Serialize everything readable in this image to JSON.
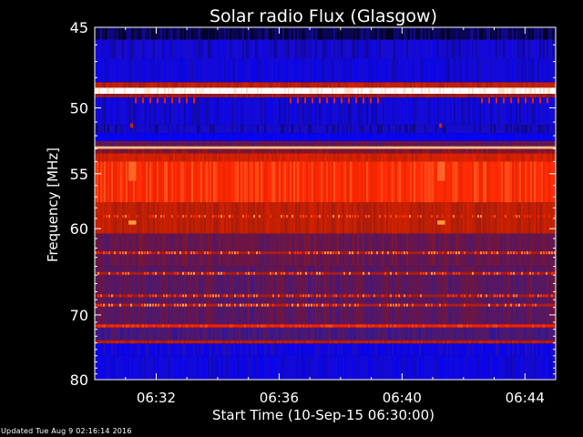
{
  "chart_data": {
    "type": "heatmap",
    "title": "Solar radio Flux (Glasgow)",
    "xlabel": "Start Time (10-Sep-15 06:30:00)",
    "ylabel": "Frequency [MHz]",
    "x_ticks": [
      "06:32",
      "06:36",
      "06:40",
      "06:44"
    ],
    "x_tick_minutes": [
      2,
      6,
      10,
      14
    ],
    "xlim_minutes": [
      0,
      15
    ],
    "y_ticks": [
      45,
      50,
      55,
      60,
      70,
      80
    ],
    "ylim_mhz": [
      45,
      80
    ],
    "y_scale": "reciprocal",
    "grid": false,
    "colormap": [
      "#000000",
      "#1a0dcc",
      "#0000ff",
      "#3c1a86",
      "#7a1430",
      "#c02000",
      "#ff2200",
      "#ff9a40",
      "#ffffff"
    ],
    "bands": [
      {
        "from_mhz": 45.0,
        "to_mhz": 45.7,
        "intensity": 0.05
      },
      {
        "from_mhz": 45.7,
        "to_mhz": 46.8,
        "intensity": 0.14
      },
      {
        "from_mhz": 46.8,
        "to_mhz": 48.3,
        "intensity": 0.16
      },
      {
        "from_mhz": 48.3,
        "to_mhz": 48.65,
        "intensity": 0.62
      },
      {
        "from_mhz": 48.65,
        "to_mhz": 49.05,
        "intensity": 1.0
      },
      {
        "from_mhz": 49.05,
        "to_mhz": 49.3,
        "intensity": 0.55
      },
      {
        "from_mhz": 49.3,
        "to_mhz": 51.2,
        "intensity": 0.15
      },
      {
        "from_mhz": 51.2,
        "to_mhz": 51.8,
        "intensity": 0.12
      },
      {
        "from_mhz": 51.8,
        "to_mhz": 52.4,
        "intensity": 0.22
      },
      {
        "from_mhz": 52.4,
        "to_mhz": 52.8,
        "intensity": 0.45
      },
      {
        "from_mhz": 52.8,
        "to_mhz": 53.0,
        "intensity": 0.92
      },
      {
        "from_mhz": 53.0,
        "to_mhz": 53.35,
        "intensity": 0.5
      },
      {
        "from_mhz": 53.35,
        "to_mhz": 54.0,
        "intensity": 0.66
      },
      {
        "from_mhz": 54.0,
        "to_mhz": 57.5,
        "intensity": 0.76
      },
      {
        "from_mhz": 57.5,
        "to_mhz": 60.5,
        "intensity": 0.62
      },
      {
        "from_mhz": 60.5,
        "to_mhz": 64.0,
        "intensity": 0.46
      },
      {
        "from_mhz": 64.0,
        "to_mhz": 71.3,
        "intensity": 0.44
      },
      {
        "from_mhz": 71.3,
        "to_mhz": 71.75,
        "intensity": 0.74
      },
      {
        "from_mhz": 71.75,
        "to_mhz": 73.6,
        "intensity": 0.4
      },
      {
        "from_mhz": 73.6,
        "to_mhz": 74.1,
        "intensity": 0.6
      },
      {
        "from_mhz": 74.1,
        "to_mhz": 76.0,
        "intensity": 0.28
      },
      {
        "from_mhz": 76.0,
        "to_mhz": 80.0,
        "intensity": 0.17
      }
    ],
    "lines": [
      {
        "mhz": 58.8,
        "intensity": 0.62
      },
      {
        "mhz": 62.5,
        "intensity": 0.64
      },
      {
        "mhz": 64.8,
        "intensity": 0.64
      },
      {
        "mhz": 67.5,
        "intensity": 0.62
      },
      {
        "mhz": 68.7,
        "intensity": 0.66
      }
    ],
    "events": [
      {
        "start_min": 1.1,
        "end_min": 1.35,
        "intensity": 0.82
      },
      {
        "start_min": 11.15,
        "end_min": 11.4,
        "intensity": 0.82
      }
    ]
  },
  "footer": {
    "updated": "Updated Tue Aug  9 02:16:14 2016"
  }
}
